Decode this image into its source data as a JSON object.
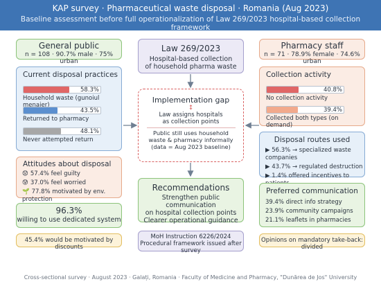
{
  "header": {
    "title": "KAP survey · Pharmaceutical waste disposal · Romania (Aug 2023)",
    "subtitle": "Baseline assessment before full operationalization of Law 269/2023 hospital-based collection framework"
  },
  "general_public": {
    "title": "General public",
    "stats": "n = 108 · 90.7% male · 75% urban"
  },
  "disposal_practices": {
    "title": "Current disposal practices",
    "items": [
      {
        "value": "58.3%",
        "label": "Household waste (gunoiul menajer)",
        "fraction": 0.583,
        "color": "#e06666"
      },
      {
        "value": "43.5%",
        "label": "Returned to pharmacy",
        "fraction": 0.435,
        "color": "#5b8fcf"
      },
      {
        "value": "48.1%",
        "label": "Never attempted return",
        "fraction": 0.481,
        "color": "#a7a7a7"
      }
    ]
  },
  "attitudes": {
    "title": "Attitudes about disposal",
    "lines": [
      {
        "icon": "😟",
        "text": "57.4% feel guilty"
      },
      {
        "icon": "😰",
        "text": "37.0% feel worried"
      },
      {
        "icon": "🌱",
        "text": "77.8% motivated by env. protection"
      }
    ]
  },
  "willing": {
    "value": "96.3%",
    "text": "willing to use dedicated system"
  },
  "discounts": "45.4% would be motivated by discounts",
  "law": {
    "title": "Law 269/2023",
    "line1": "Hospital-based collection",
    "line2": "of household pharma waste"
  },
  "gap": {
    "title": "Implementation gap",
    "symbol": "↕",
    "line1": "Law assigns hospitals",
    "line2": "as collection points",
    "line3": "Public still uses household",
    "line4": "waste & pharmacy informally",
    "line5": "(data = Aug 2023 baseline)"
  },
  "recommendations": {
    "title": "Recommendations",
    "line1": "Strengthen public communication",
    "line2": "on hospital collection points",
    "line3": "Clearer operational guidance"
  },
  "moh": {
    "line1": "MoH Instruction 6226/2024",
    "line2": "Procedural framework issued after survey"
  },
  "pharmacy_staff": {
    "title": "Pharmacy staff",
    "stats": "n = 71 · 78.9% female · 74.6% urban"
  },
  "collection_activity": {
    "title": "Collection activity",
    "items": [
      {
        "value": "40.8%",
        "label": "No collection activity",
        "fraction": 0.408,
        "color": "#e06666"
      },
      {
        "value": "39.4%",
        "label": "Collected both types (on demand)",
        "fraction": 0.394,
        "color": "#f2a98c"
      }
    ]
  },
  "routes": {
    "title": "Disposal routes used",
    "lines": [
      "▶ 56.3% → specialized waste companies",
      "▶ 43.7% → regulated destruction",
      "▶ 1.4% offered incentives to patients"
    ]
  },
  "preferred": {
    "title": "Preferred communication",
    "lines": [
      "39.4% direct info strategy",
      "23.9% community campaigns",
      "21.1% leaflets in pharmacies"
    ]
  },
  "opinions": "Opinions on mandatory take-back: divided",
  "footer": "Cross-sectional survey · August 2023 · Galați, Romania · Faculty of Medicine and Pharmacy, \"Dunărea de Jos\" University"
}
